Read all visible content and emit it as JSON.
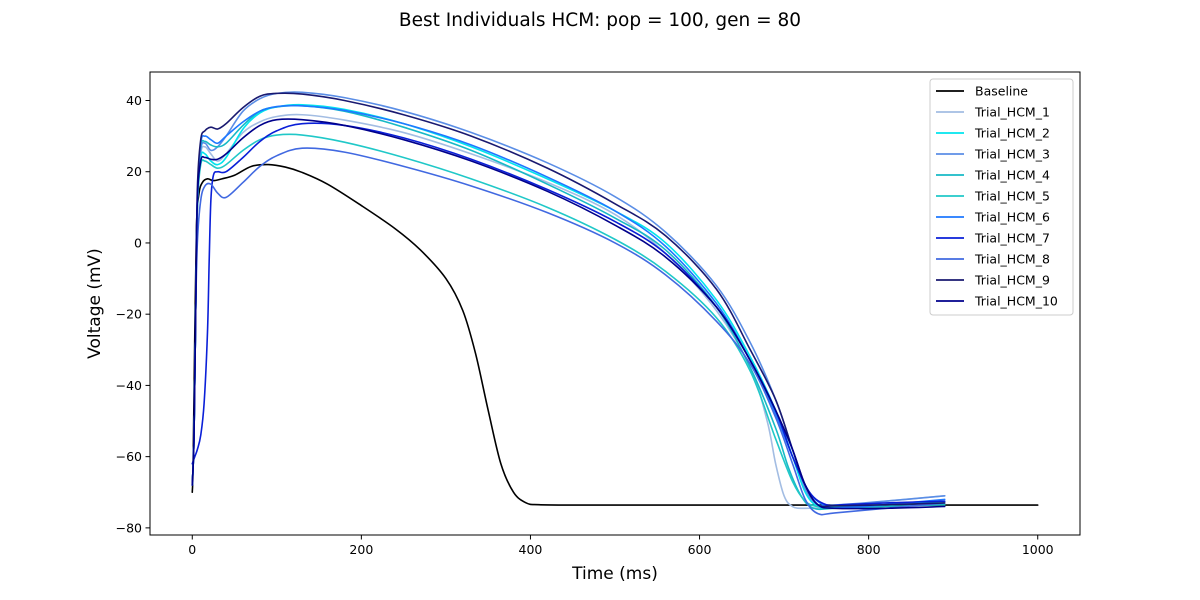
{
  "chart_data": {
    "type": "line",
    "title": "Best Individuals HCM: pop = 100, gen = 80",
    "xlabel": "Time (ms)",
    "ylabel": "Voltage (mV)",
    "xlim": [
      -50,
      1050
    ],
    "ylim": [
      -82,
      48
    ],
    "xticks": [
      0,
      200,
      400,
      600,
      800,
      1000
    ],
    "yticks": [
      -80,
      -60,
      -40,
      -20,
      0,
      20,
      40
    ],
    "xtick_labels": [
      "0",
      "200",
      "400",
      "600",
      "800",
      "1000"
    ],
    "ytick_labels": [
      "−80",
      "−60",
      "−40",
      "−20",
      "0",
      "20",
      "40"
    ],
    "grid": false,
    "legend_position": "top-right",
    "series": [
      {
        "name": "Baseline",
        "color": "#000000",
        "points": [
          [
            0,
            -70
          ],
          [
            1,
            -62
          ],
          [
            3,
            -25
          ],
          [
            5,
            5
          ],
          [
            8,
            14
          ],
          [
            12,
            17
          ],
          [
            18,
            18
          ],
          [
            25,
            17.5
          ],
          [
            35,
            18
          ],
          [
            50,
            19
          ],
          [
            70,
            21.5
          ],
          [
            90,
            22
          ],
          [
            110,
            21.3
          ],
          [
            130,
            19.8
          ],
          [
            160,
            16.5
          ],
          [
            200,
            10.5
          ],
          [
            240,
            4
          ],
          [
            270,
            -2
          ],
          [
            300,
            -10
          ],
          [
            320,
            -19
          ],
          [
            335,
            -31
          ],
          [
            350,
            -47
          ],
          [
            365,
            -62
          ],
          [
            380,
            -70
          ],
          [
            395,
            -73
          ],
          [
            410,
            -73.5
          ],
          [
            450,
            -73.6
          ],
          [
            600,
            -73.6
          ],
          [
            800,
            -73.6
          ],
          [
            1000,
            -73.6
          ]
        ]
      },
      {
        "name": "Trial_HCM_1",
        "color": "#a3bde3",
        "points": [
          [
            0,
            -68
          ],
          [
            2,
            -55
          ],
          [
            4,
            -20
          ],
          [
            6,
            10
          ],
          [
            10,
            25
          ],
          [
            15,
            27
          ],
          [
            22,
            25
          ],
          [
            30,
            23
          ],
          [
            40,
            25
          ],
          [
            60,
            31
          ],
          [
            80,
            34
          ],
          [
            100,
            35.5
          ],
          [
            130,
            36
          ],
          [
            180,
            34.5
          ],
          [
            250,
            31
          ],
          [
            330,
            25
          ],
          [
            420,
            17
          ],
          [
            500,
            8
          ],
          [
            560,
            -3
          ],
          [
            620,
            -19
          ],
          [
            660,
            -35
          ],
          [
            680,
            -50
          ],
          [
            690,
            -62
          ],
          [
            700,
            -71
          ],
          [
            710,
            -74
          ],
          [
            725,
            -74.5
          ],
          [
            760,
            -74
          ],
          [
            820,
            -72.5
          ],
          [
            890,
            -71
          ]
        ]
      },
      {
        "name": "Trial_HCM_2",
        "color": "#00e5ee",
        "points": [
          [
            0,
            -68
          ],
          [
            2,
            -55
          ],
          [
            4,
            -20
          ],
          [
            6,
            10
          ],
          [
            10,
            24
          ],
          [
            15,
            25
          ],
          [
            22,
            23
          ],
          [
            30,
            22
          ],
          [
            40,
            24
          ],
          [
            60,
            32
          ],
          [
            80,
            36.5
          ],
          [
            100,
            38.2
          ],
          [
            130,
            38.8
          ],
          [
            180,
            37.5
          ],
          [
            250,
            33.5
          ],
          [
            330,
            27
          ],
          [
            420,
            18
          ],
          [
            500,
            9
          ],
          [
            560,
            0
          ],
          [
            620,
            -16
          ],
          [
            660,
            -32
          ],
          [
            690,
            -47
          ],
          [
            710,
            -60
          ],
          [
            725,
            -70
          ],
          [
            740,
            -74
          ],
          [
            760,
            -74.3
          ],
          [
            820,
            -73.5
          ],
          [
            890,
            -72.5
          ]
        ]
      },
      {
        "name": "Trial_HCM_3",
        "color": "#5b8ee6",
        "points": [
          [
            0,
            -68
          ],
          [
            2,
            -55
          ],
          [
            4,
            -20
          ],
          [
            6,
            10
          ],
          [
            10,
            26
          ],
          [
            15,
            28
          ],
          [
            22,
            26
          ],
          [
            30,
            27
          ],
          [
            40,
            30
          ],
          [
            60,
            37
          ],
          [
            80,
            40.5
          ],
          [
            100,
            42
          ],
          [
            130,
            42.3
          ],
          [
            180,
            40.8
          ],
          [
            250,
            37
          ],
          [
            330,
            31
          ],
          [
            420,
            22.5
          ],
          [
            500,
            13
          ],
          [
            560,
            3
          ],
          [
            620,
            -12
          ],
          [
            660,
            -28
          ],
          [
            690,
            -44
          ],
          [
            710,
            -58
          ],
          [
            725,
            -69
          ],
          [
            740,
            -73.5
          ],
          [
            760,
            -73.6
          ],
          [
            820,
            -72.5
          ],
          [
            890,
            -71
          ]
        ]
      },
      {
        "name": "Trial_HCM_4",
        "color": "#17b9c6",
        "points": [
          [
            0,
            -68
          ],
          [
            2,
            -55
          ],
          [
            4,
            -20
          ],
          [
            6,
            12
          ],
          [
            10,
            27
          ],
          [
            15,
            28.5
          ],
          [
            22,
            27.5
          ],
          [
            30,
            27
          ],
          [
            40,
            28
          ],
          [
            60,
            33
          ],
          [
            80,
            37
          ],
          [
            100,
            38.2
          ],
          [
            130,
            38.5
          ],
          [
            180,
            37
          ],
          [
            250,
            32.5
          ],
          [
            330,
            26
          ],
          [
            420,
            16.5
          ],
          [
            500,
            7
          ],
          [
            560,
            -2
          ],
          [
            620,
            -18
          ],
          [
            660,
            -35
          ],
          [
            690,
            -52
          ],
          [
            705,
            -63
          ],
          [
            720,
            -71
          ],
          [
            735,
            -74.5
          ],
          [
            760,
            -74.5
          ],
          [
            820,
            -74
          ],
          [
            890,
            -73.5
          ]
        ]
      },
      {
        "name": "Trial_HCM_5",
        "color": "#20c8c8",
        "points": [
          [
            0,
            -68
          ],
          [
            2,
            -55
          ],
          [
            4,
            -20
          ],
          [
            6,
            10
          ],
          [
            10,
            22
          ],
          [
            15,
            23
          ],
          [
            22,
            22
          ],
          [
            30,
            21
          ],
          [
            40,
            22
          ],
          [
            60,
            26
          ],
          [
            80,
            29
          ],
          [
            100,
            30.3
          ],
          [
            130,
            30.3
          ],
          [
            180,
            28.3
          ],
          [
            250,
            24
          ],
          [
            330,
            18
          ],
          [
            420,
            10
          ],
          [
            500,
            1
          ],
          [
            560,
            -8
          ],
          [
            620,
            -21
          ],
          [
            660,
            -36
          ],
          [
            690,
            -55
          ],
          [
            710,
            -67
          ],
          [
            725,
            -72.5
          ],
          [
            740,
            -74
          ],
          [
            760,
            -74
          ],
          [
            820,
            -73.5
          ],
          [
            890,
            -73
          ]
        ]
      },
      {
        "name": "Trial_HCM_6",
        "color": "#1e78ff",
        "points": [
          [
            0,
            -68
          ],
          [
            2,
            -55
          ],
          [
            4,
            -20
          ],
          [
            6,
            12
          ],
          [
            10,
            28
          ],
          [
            15,
            30
          ],
          [
            22,
            29
          ],
          [
            30,
            28
          ],
          [
            40,
            30
          ],
          [
            60,
            34
          ],
          [
            80,
            37
          ],
          [
            100,
            38.3
          ],
          [
            130,
            38.5
          ],
          [
            180,
            37.2
          ],
          [
            250,
            33.5
          ],
          [
            330,
            27.5
          ],
          [
            420,
            18.5
          ],
          [
            500,
            9
          ],
          [
            560,
            -1
          ],
          [
            620,
            -17
          ],
          [
            660,
            -33
          ],
          [
            690,
            -48
          ],
          [
            710,
            -60
          ],
          [
            730,
            -70
          ],
          [
            750,
            -74
          ],
          [
            770,
            -74.3
          ],
          [
            820,
            -73.5
          ],
          [
            890,
            -72
          ]
        ]
      },
      {
        "name": "Trial_HCM_7",
        "color": "#0a1fd8",
        "points": [
          [
            0,
            -62
          ],
          [
            3,
            -60
          ],
          [
            6,
            -58
          ],
          [
            10,
            -54
          ],
          [
            14,
            -45
          ],
          [
            18,
            -25
          ],
          [
            20,
            -5
          ],
          [
            22,
            12
          ],
          [
            25,
            19
          ],
          [
            30,
            20
          ],
          [
            40,
            20
          ],
          [
            60,
            24
          ],
          [
            80,
            28.5
          ],
          [
            100,
            31.5
          ],
          [
            130,
            33.5
          ],
          [
            180,
            33
          ],
          [
            250,
            29.5
          ],
          [
            330,
            23.5
          ],
          [
            420,
            15
          ],
          [
            500,
            6
          ],
          [
            560,
            -3
          ],
          [
            620,
            -18
          ],
          [
            660,
            -33
          ],
          [
            690,
            -47
          ],
          [
            710,
            -60
          ],
          [
            730,
            -70
          ],
          [
            750,
            -73.5
          ],
          [
            770,
            -73.5
          ],
          [
            820,
            -73
          ],
          [
            890,
            -72.5
          ]
        ]
      },
      {
        "name": "Trial_HCM_8",
        "color": "#4169e1",
        "points": [
          [
            0,
            -68
          ],
          [
            2,
            -55
          ],
          [
            4,
            -20
          ],
          [
            6,
            0
          ],
          [
            10,
            12
          ],
          [
            15,
            16
          ],
          [
            22,
            16.5
          ],
          [
            30,
            14
          ],
          [
            40,
            12.8
          ],
          [
            60,
            17
          ],
          [
            80,
            21.5
          ],
          [
            100,
            24.5
          ],
          [
            130,
            26.6
          ],
          [
            180,
            25.5
          ],
          [
            250,
            21.5
          ],
          [
            330,
            16
          ],
          [
            420,
            8.5
          ],
          [
            500,
            0
          ],
          [
            560,
            -9
          ],
          [
            620,
            -22
          ],
          [
            660,
            -34
          ],
          [
            690,
            -49
          ],
          [
            710,
            -62
          ],
          [
            725,
            -72
          ],
          [
            740,
            -76
          ],
          [
            760,
            -75.8
          ],
          [
            820,
            -74.5
          ],
          [
            890,
            -73
          ]
        ]
      },
      {
        "name": "Trial_HCM_9",
        "color": "#191970",
        "points": [
          [
            0,
            -68
          ],
          [
            2,
            -55
          ],
          [
            4,
            -20
          ],
          [
            6,
            15
          ],
          [
            10,
            29
          ],
          [
            15,
            31.5
          ],
          [
            22,
            32.5
          ],
          [
            30,
            32
          ],
          [
            40,
            33.5
          ],
          [
            60,
            38
          ],
          [
            80,
            41.2
          ],
          [
            100,
            42
          ],
          [
            130,
            41.8
          ],
          [
            180,
            40
          ],
          [
            250,
            36
          ],
          [
            330,
            30
          ],
          [
            420,
            21
          ],
          [
            500,
            11
          ],
          [
            560,
            2
          ],
          [
            620,
            -13
          ],
          [
            660,
            -30
          ],
          [
            690,
            -44
          ],
          [
            710,
            -58
          ],
          [
            725,
            -68
          ],
          [
            740,
            -73.5
          ],
          [
            760,
            -73.8
          ],
          [
            820,
            -73.5
          ],
          [
            890,
            -73
          ]
        ]
      },
      {
        "name": "Trial_HCM_10",
        "color": "#00008b",
        "points": [
          [
            0,
            -68
          ],
          [
            2,
            -55
          ],
          [
            4,
            -20
          ],
          [
            6,
            12
          ],
          [
            10,
            23
          ],
          [
            15,
            24
          ],
          [
            22,
            23.5
          ],
          [
            30,
            23.5
          ],
          [
            40,
            25
          ],
          [
            60,
            29.5
          ],
          [
            80,
            33
          ],
          [
            100,
            34.6
          ],
          [
            130,
            34.6
          ],
          [
            180,
            33
          ],
          [
            250,
            29
          ],
          [
            330,
            23
          ],
          [
            420,
            14.5
          ],
          [
            500,
            5
          ],
          [
            560,
            -4
          ],
          [
            620,
            -18
          ],
          [
            660,
            -33
          ],
          [
            690,
            -47
          ],
          [
            710,
            -58
          ],
          [
            725,
            -68
          ],
          [
            740,
            -73.5
          ],
          [
            760,
            -74.5
          ],
          [
            820,
            -74.5
          ],
          [
            890,
            -74
          ]
        ]
      }
    ]
  }
}
